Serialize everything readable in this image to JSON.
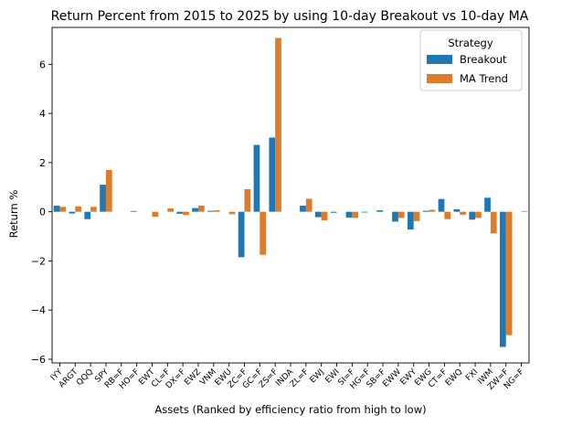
{
  "chart_data": {
    "type": "bar",
    "title": "Return Percent from 2015 to 2025 by using 10-day Breakout vs 10-day MA",
    "xlabel": "Assets (Ranked by efficiency ratio from high to low)",
    "ylabel": "Return %",
    "ylim": [
      -6.15,
      7.5
    ],
    "yticks": [
      -6,
      -4,
      -2,
      0,
      2,
      4,
      6
    ],
    "ytick_labels": [
      "−6",
      "−4",
      "−2",
      "0",
      "2",
      "4",
      "6"
    ],
    "grid": false,
    "legend": {
      "title": "Strategy",
      "placement": "top-right"
    },
    "categories": [
      "IYY",
      "ARGT",
      "QQQ",
      "SPY",
      "RB=F",
      "HO=F",
      "EWT",
      "CL=F",
      "DX=F",
      "EWZ",
      "VNM",
      "EWU",
      "ZC=F",
      "GC=F",
      "ZS=F",
      "INDA",
      "ZL=F",
      "EWJ",
      "EWI",
      "SI=F",
      "HG=F",
      "SB=F",
      "EWW",
      "EWY",
      "EWG",
      "CT=F",
      "EWQ",
      "FXI",
      "IWM",
      "ZW=F",
      "NG=F"
    ],
    "series": [
      {
        "name": "Breakout",
        "color": "#1f77b4",
        "values": [
          0.25,
          -0.07,
          -0.3,
          1.1,
          0.0,
          0.03,
          0.0,
          0.0,
          -0.08,
          0.15,
          0.04,
          0.0,
          -1.85,
          2.72,
          3.02,
          0.0,
          0.25,
          -0.22,
          -0.04,
          -0.24,
          -0.03,
          0.06,
          -0.4,
          -0.72,
          0.04,
          0.52,
          0.1,
          -0.32,
          0.57,
          -5.5,
          0.0
        ]
      },
      {
        "name": "MA Trend",
        "color": "#e07b29",
        "values": [
          0.2,
          0.22,
          0.2,
          1.7,
          0.0,
          0.0,
          -0.2,
          0.14,
          -0.13,
          0.25,
          0.06,
          -0.1,
          0.92,
          -1.75,
          7.07,
          0.0,
          0.53,
          -0.35,
          0.0,
          -0.25,
          0.0,
          0.0,
          -0.25,
          -0.38,
          0.08,
          -0.3,
          -0.12,
          -0.25,
          -0.88,
          -5.02,
          0.03
        ]
      }
    ]
  }
}
